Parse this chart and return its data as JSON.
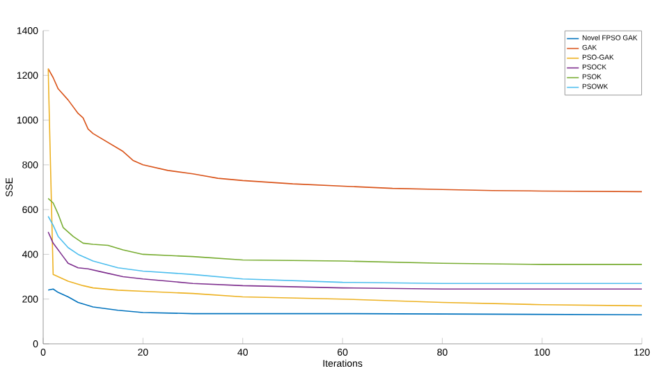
{
  "chart_data": {
    "type": "line",
    "xlabel": "Iterations",
    "ylabel": "SSE",
    "xlim": [
      0,
      120
    ],
    "ylim": [
      0,
      1400
    ],
    "xticks": [
      0,
      20,
      40,
      60,
      80,
      100,
      120
    ],
    "yticks": [
      0,
      200,
      400,
      600,
      800,
      1000,
      1200,
      1400
    ],
    "grid": false,
    "legend": "top right",
    "marker": "none",
    "line_style": "solid",
    "series": [
      {
        "name": "Novel FPSO GAK",
        "color": "#0072bd",
        "x": [
          1,
          2,
          3,
          5,
          7,
          10,
          15,
          20,
          30,
          40,
          60,
          120
        ],
        "values": [
          240,
          245,
          230,
          210,
          185,
          165,
          150,
          140,
          135,
          135,
          135,
          130
        ]
      },
      {
        "name": "GAK",
        "color": "#d95319",
        "x": [
          1,
          2,
          3,
          5,
          7,
          8,
          9,
          10,
          13,
          16,
          18,
          20,
          25,
          30,
          35,
          40,
          50,
          60,
          70,
          80,
          90,
          100,
          120
        ],
        "values": [
          1230,
          1190,
          1140,
          1090,
          1030,
          1010,
          960,
          940,
          900,
          860,
          820,
          800,
          775,
          760,
          740,
          730,
          715,
          705,
          695,
          690,
          685,
          683,
          680
        ]
      },
      {
        "name": "PSO-GAK",
        "color": "#edb120",
        "x": [
          1,
          2,
          3,
          5,
          8,
          10,
          15,
          20,
          30,
          40,
          60,
          80,
          100,
          120
        ],
        "values": [
          1230,
          310,
          300,
          280,
          260,
          250,
          240,
          235,
          225,
          210,
          200,
          185,
          175,
          170
        ]
      },
      {
        "name": "PSOCK",
        "color": "#7e2f8e",
        "x": [
          1,
          2,
          3,
          4,
          5,
          7,
          9,
          12,
          16,
          20,
          30,
          40,
          60,
          80,
          120
        ],
        "values": [
          500,
          450,
          420,
          390,
          360,
          340,
          335,
          320,
          300,
          290,
          270,
          260,
          250,
          245,
          245
        ]
      },
      {
        "name": "PSOK",
        "color": "#77ac30",
        "x": [
          1,
          2,
          3,
          4,
          6,
          8,
          10,
          13,
          16,
          20,
          25,
          30,
          40,
          60,
          80,
          100,
          120
        ],
        "values": [
          650,
          630,
          580,
          520,
          480,
          450,
          445,
          440,
          420,
          400,
          395,
          390,
          375,
          370,
          360,
          355,
          355
        ]
      },
      {
        "name": "PSOWK",
        "color": "#4dbeee",
        "x": [
          1,
          2,
          3,
          5,
          7,
          10,
          15,
          20,
          30,
          40,
          60,
          80,
          100,
          120
        ],
        "values": [
          570,
          530,
          480,
          430,
          400,
          370,
          340,
          325,
          310,
          290,
          275,
          270,
          270,
          270
        ]
      }
    ]
  }
}
